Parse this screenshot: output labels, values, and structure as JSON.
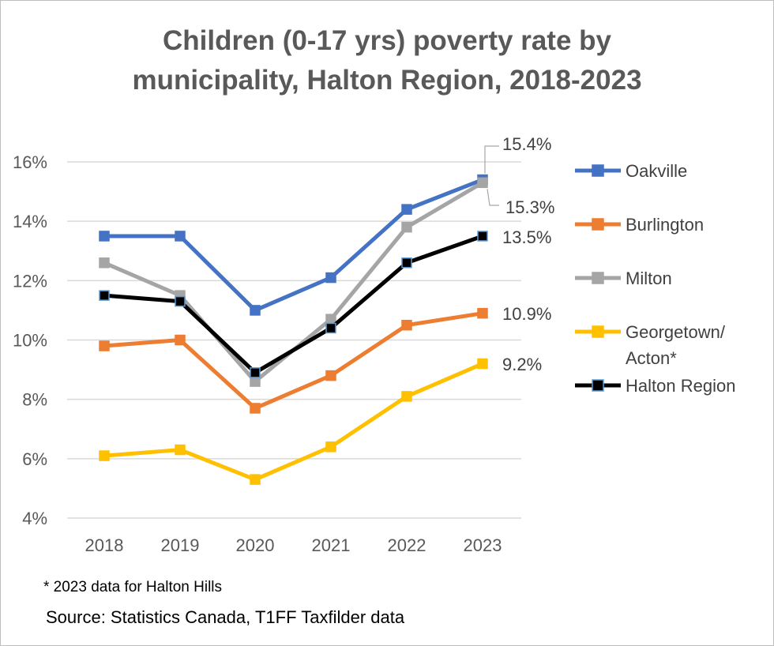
{
  "chart_data": {
    "type": "line",
    "title_lines": [
      "Children (0-17 yrs) poverty rate by",
      "municipality, Halton Region, 2018-2023"
    ],
    "categories": [
      "2018",
      "2019",
      "2020",
      "2021",
      "2022",
      "2023"
    ],
    "ylim": [
      4,
      16
    ],
    "yticks": [
      4,
      6,
      8,
      10,
      12,
      14,
      16
    ],
    "ytick_labels": [
      "4%",
      "6%",
      "8%",
      "10%",
      "12%",
      "14%",
      "16%"
    ],
    "xlabel": "",
    "ylabel": "",
    "grid": true,
    "legend_position": "right",
    "series": [
      {
        "name": "Oakville",
        "color": "#4472C4",
        "values": [
          13.5,
          13.5,
          11.0,
          12.1,
          14.4,
          15.4
        ],
        "last_label": "15.4%"
      },
      {
        "name": "Burlington",
        "color": "#ED7D31",
        "values": [
          9.8,
          10.0,
          7.7,
          8.8,
          10.5,
          10.9
        ],
        "last_label": "10.9%"
      },
      {
        "name": "Milton",
        "color": "#A5A5A5",
        "values": [
          12.6,
          11.5,
          8.6,
          10.7,
          13.8,
          15.3
        ],
        "last_label": "15.3%"
      },
      {
        "name": "Georgetown/\nActon*",
        "legend_lines": [
          "Georgetown/",
          "Acton*"
        ],
        "color": "#FFC000",
        "values": [
          6.1,
          6.3,
          5.3,
          6.4,
          8.1,
          9.2
        ],
        "last_label": "9.2%"
      },
      {
        "name": "Halton Region",
        "color": "#000000",
        "marker_edge": "#5B9BD5",
        "values": [
          11.5,
          11.3,
          8.9,
          10.4,
          12.6,
          13.5
        ],
        "last_label": "13.5%"
      }
    ]
  },
  "footnote": "* 2023 data for Halton Hills",
  "source": "Source: Statistics Canada, T1FF Taxfilder data"
}
